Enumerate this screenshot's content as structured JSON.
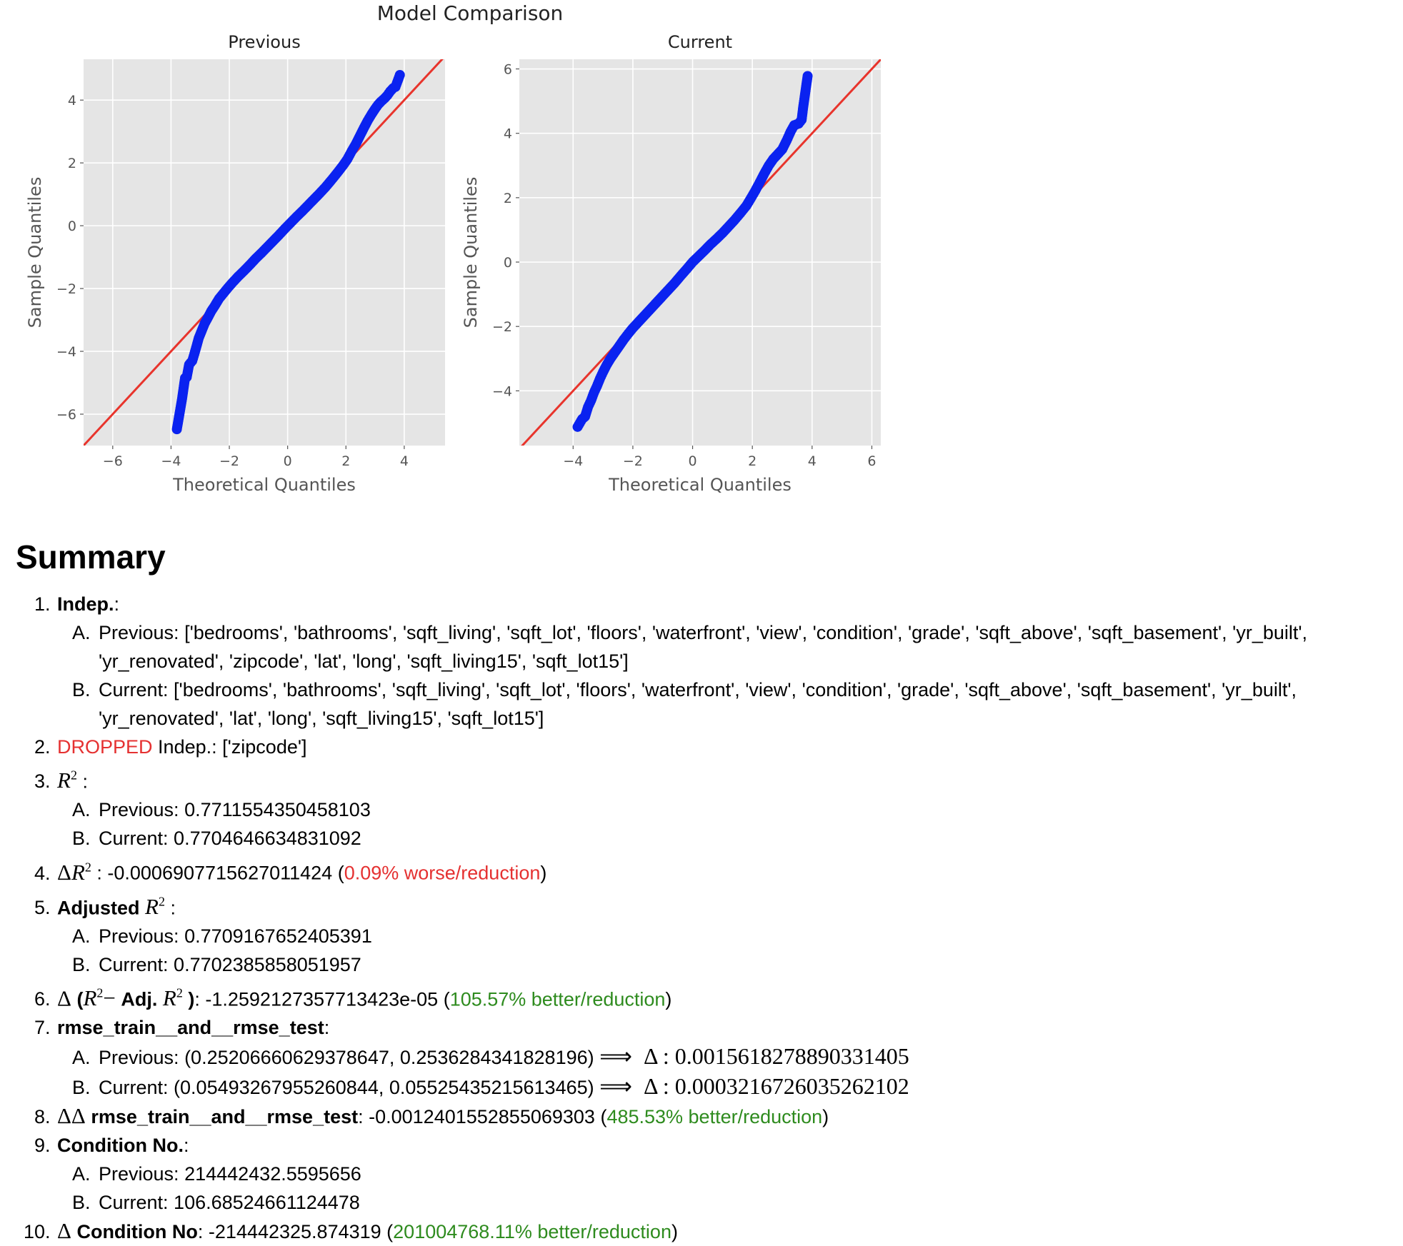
{
  "chart_data": {
    "title": "Model Comparison",
    "charts": [
      {
        "type": "scatter",
        "title": "Previous",
        "xlabel": "Theoretical Quantiles",
        "ylabel": "Sample Quantiles",
        "xlim": [
          -7,
          5.4
        ],
        "ylim": [
          -7,
          5.3
        ],
        "xticks": [
          -6,
          -4,
          -2,
          0,
          2,
          4
        ],
        "yticks": [
          -6,
          -4,
          -2,
          0,
          2,
          4
        ],
        "grid": true,
        "reference_line": [
          [
            -7,
            -7
          ],
          [
            5.4,
            5.4
          ]
        ],
        "points": [
          [
            -3.8,
            -6.48
          ],
          [
            -3.62,
            -5.5
          ],
          [
            -3.52,
            -4.85
          ],
          [
            -3.46,
            -4.82
          ],
          [
            -3.38,
            -4.42
          ],
          [
            -3.27,
            -4.3
          ],
          [
            -3.2,
            -4.08
          ],
          [
            -3.12,
            -3.82
          ],
          [
            -3.05,
            -3.58
          ],
          [
            -2.95,
            -3.35
          ],
          [
            -2.85,
            -3.12
          ],
          [
            -2.75,
            -2.95
          ],
          [
            -2.62,
            -2.72
          ],
          [
            -2.5,
            -2.55
          ],
          [
            -2.35,
            -2.32
          ],
          [
            -2.2,
            -2.15
          ],
          [
            -2.05,
            -1.98
          ],
          [
            -1.9,
            -1.82
          ],
          [
            -1.7,
            -1.62
          ],
          [
            -1.5,
            -1.44
          ],
          [
            -1.3,
            -1.25
          ],
          [
            -1.1,
            -1.05
          ],
          [
            -0.9,
            -0.87
          ],
          [
            -0.7,
            -0.68
          ],
          [
            -0.5,
            -0.49
          ],
          [
            -0.3,
            -0.3
          ],
          [
            -0.1,
            -0.1
          ],
          [
            0.1,
            0.09
          ],
          [
            0.3,
            0.28
          ],
          [
            0.5,
            0.46
          ],
          [
            0.7,
            0.65
          ],
          [
            0.9,
            0.84
          ],
          [
            1.1,
            1.03
          ],
          [
            1.3,
            1.23
          ],
          [
            1.5,
            1.45
          ],
          [
            1.7,
            1.68
          ],
          [
            1.9,
            1.92
          ],
          [
            2.05,
            2.12
          ],
          [
            2.2,
            2.38
          ],
          [
            2.35,
            2.62
          ],
          [
            2.5,
            2.9
          ],
          [
            2.62,
            3.12
          ],
          [
            2.75,
            3.35
          ],
          [
            2.88,
            3.55
          ],
          [
            3.0,
            3.72
          ],
          [
            3.1,
            3.85
          ],
          [
            3.2,
            3.95
          ],
          [
            3.32,
            4.05
          ],
          [
            3.42,
            4.15
          ],
          [
            3.52,
            4.28
          ],
          [
            3.62,
            4.38
          ],
          [
            3.7,
            4.42
          ],
          [
            3.85,
            4.8
          ]
        ]
      },
      {
        "type": "scatter",
        "title": "Current",
        "xlabel": "Theoretical Quantiles",
        "ylabel": "Sample Quantiles",
        "xlim": [
          -5.8,
          6.3
        ],
        "ylim": [
          -5.7,
          6.3
        ],
        "xticks": [
          -4,
          -2,
          0,
          2,
          4,
          6
        ],
        "yticks": [
          -4,
          -2,
          0,
          2,
          4,
          6
        ],
        "grid": true,
        "reference_line": [
          [
            -5.8,
            -5.8
          ],
          [
            6.3,
            6.3
          ]
        ],
        "points": [
          [
            -3.85,
            -5.12
          ],
          [
            -3.7,
            -4.88
          ],
          [
            -3.6,
            -4.8
          ],
          [
            -3.5,
            -4.5
          ],
          [
            -3.4,
            -4.3
          ],
          [
            -3.3,
            -4.05
          ],
          [
            -3.2,
            -3.85
          ],
          [
            -3.1,
            -3.62
          ],
          [
            -3.0,
            -3.42
          ],
          [
            -2.88,
            -3.2
          ],
          [
            -2.75,
            -3.0
          ],
          [
            -2.6,
            -2.8
          ],
          [
            -2.45,
            -2.6
          ],
          [
            -2.3,
            -2.4
          ],
          [
            -2.15,
            -2.22
          ],
          [
            -2.0,
            -2.05
          ],
          [
            -1.8,
            -1.85
          ],
          [
            -1.6,
            -1.65
          ],
          [
            -1.4,
            -1.45
          ],
          [
            -1.2,
            -1.25
          ],
          [
            -1.0,
            -1.05
          ],
          [
            -0.8,
            -0.85
          ],
          [
            -0.6,
            -0.65
          ],
          [
            -0.4,
            -0.43
          ],
          [
            -0.2,
            -0.22
          ],
          [
            0.0,
            0.0
          ],
          [
            0.2,
            0.18
          ],
          [
            0.4,
            0.36
          ],
          [
            0.6,
            0.55
          ],
          [
            0.8,
            0.72
          ],
          [
            1.0,
            0.9
          ],
          [
            1.2,
            1.1
          ],
          [
            1.4,
            1.3
          ],
          [
            1.6,
            1.52
          ],
          [
            1.8,
            1.75
          ],
          [
            1.95,
            1.98
          ],
          [
            2.1,
            2.22
          ],
          [
            2.25,
            2.48
          ],
          [
            2.4,
            2.75
          ],
          [
            2.55,
            3.0
          ],
          [
            2.7,
            3.2
          ],
          [
            2.85,
            3.35
          ],
          [
            3.0,
            3.5
          ],
          [
            3.15,
            3.78
          ],
          [
            3.28,
            4.05
          ],
          [
            3.4,
            4.25
          ],
          [
            3.55,
            4.3
          ],
          [
            3.65,
            4.42
          ],
          [
            3.7,
            4.8
          ],
          [
            3.85,
            5.78
          ]
        ]
      }
    ]
  },
  "summary": {
    "heading": "Summary",
    "indep_label": "Indep.",
    "prev_label": "Previous",
    "curr_label": "Current",
    "indep_previous": "['bedrooms', 'bathrooms', 'sqft_living', 'sqft_lot', 'floors', 'waterfront', 'view', 'condition', 'grade', 'sqft_above', 'sqft_basement', 'yr_built', 'yr_renovated', 'zipcode', 'lat', 'long', 'sqft_living15', 'sqft_lot15']",
    "indep_current": "['bedrooms', 'bathrooms', 'sqft_living', 'sqft_lot', 'floors', 'waterfront', 'view', 'condition', 'grade', 'sqft_above', 'sqft_basement', 'yr_built', 'yr_renovated', 'lat', 'long', 'sqft_living15', 'sqft_lot15']",
    "dropped_word": "DROPPED",
    "dropped_indep_label": "Indep.:",
    "dropped_value": "['zipcode']",
    "r2_previous": "0.7711554350458103",
    "r2_current": "0.7704646634831092",
    "delta_r2_value": "-0.0006907715627011424",
    "delta_r2_note": "0.09% worse/reduction",
    "adjusted_label": "Adjusted",
    "adj_r2_previous": "0.7709167652405391",
    "adj_r2_current": "0.7702385858051957",
    "adj_label": "Adj.",
    "delta_diff_value": "-1.2592127357713423e-05",
    "delta_diff_note": "105.57% better/reduction",
    "rmse_label": "rmse_train__and__rmse_test",
    "rmse_previous": "(0.25206660629378647, 0.2536284341828196)",
    "rmse_previous_delta": "0.0015618278890331405",
    "rmse_current": "(0.05493267955260844, 0.05525435215613465)",
    "rmse_current_delta": "0.0003216726035262102",
    "delta_delta_rmse_value": "-0.0012401552855069303",
    "delta_delta_rmse_note": "485.53% better/reduction",
    "cond_label": "Condition No.",
    "cond_previous": "214442432.5595656",
    "cond_current": "106.68524661124478",
    "delta_cond_label": "Condition No",
    "delta_cond_value": "-214442325.874319",
    "delta_cond_note": "201004768.11% better/reduction"
  }
}
